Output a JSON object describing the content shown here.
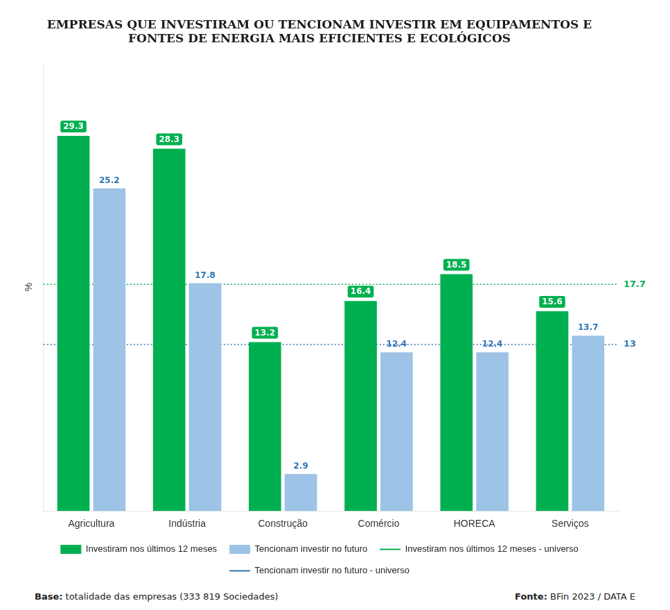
{
  "chart_data": {
    "type": "bar",
    "title": [
      "EMPRESAS QUE INVESTIRAM OU TENCIONAM INVESTIR EM EQUIPAMENTOS E",
      "FONTES DE ENERGIA MAIS EFICIENTES E ECOLÓGICOS"
    ],
    "y_label": "%",
    "categories": [
      "Agricultura",
      "Indústria",
      "Construção",
      "Comércio",
      "HORECA",
      "Serviços"
    ],
    "series": [
      {
        "name": "Investiram nos últimos 12 meses",
        "color": "#00b050",
        "values": [
          29.3,
          28.3,
          13.2,
          16.4,
          18.5,
          15.6
        ]
      },
      {
        "name": "Tencionam investir no futuro",
        "color": "#9dc3e6",
        "values": [
          25.2,
          17.8,
          2.9,
          12.4,
          12.4,
          13.7
        ]
      }
    ],
    "reference_lines": [
      {
        "name": "Investiram nos últimos 12 meses - universo",
        "value": 17.7,
        "color": "#00b050",
        "line_style": "dotted"
      },
      {
        "name": "Tencionam investir no futuro - universo",
        "value": 13.0,
        "color": "#2e75b6",
        "line_style": "dotted"
      }
    ],
    "ylim": [
      0,
      35
    ],
    "tick_labels": "x",
    "grid": false,
    "legend": "bottom",
    "data_labels": true,
    "annotations": [
      "Base: totalidade das empresas (333 819 Sociedades)",
      "Fonte: BFin 2023 / DATA E"
    ]
  }
}
